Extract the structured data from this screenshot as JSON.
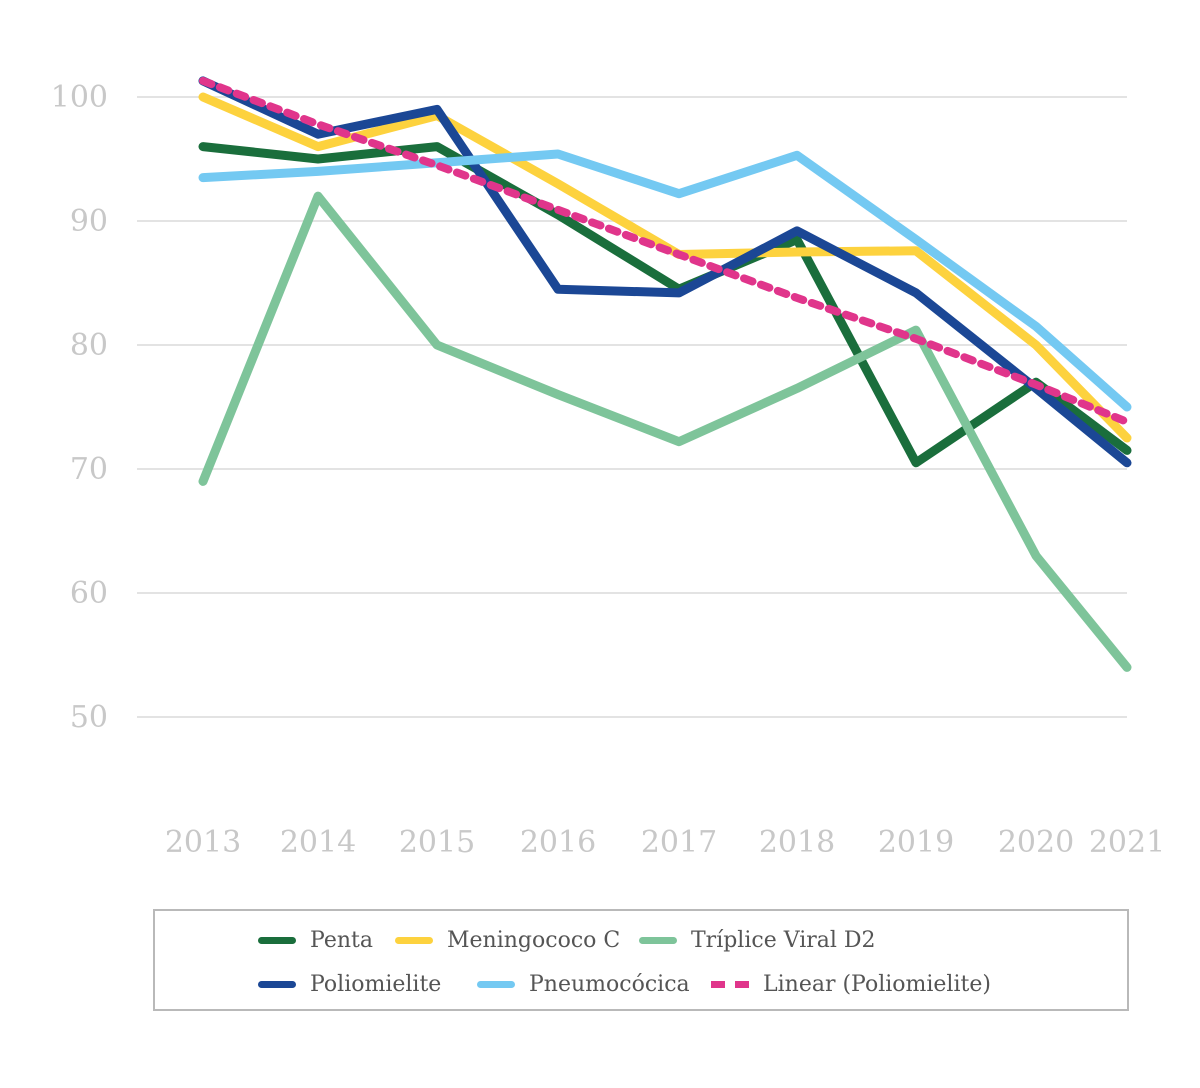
{
  "chart_data": {
    "type": "line",
    "title": "",
    "xlabel": "",
    "ylabel": "",
    "categories": [
      "2013",
      "2014",
      "2015",
      "2016",
      "2017",
      "2018",
      "2019",
      "2020",
      "2021"
    ],
    "ylim": [
      50,
      100
    ],
    "yticks": [
      100,
      90,
      80,
      70,
      60,
      50
    ],
    "grid": true,
    "legend_position": "bottom",
    "series": [
      {
        "name": "Penta",
        "color": "#1a6e3c",
        "style": "solid",
        "values": [
          96.0,
          95.0,
          96.0,
          90.5,
          84.5,
          88.5,
          70.5,
          77.0,
          71.5
        ]
      },
      {
        "name": "Meningococo C",
        "color": "#fdd23e",
        "style": "solid",
        "values": [
          100.0,
          96.0,
          98.5,
          93.0,
          87.3,
          87.5,
          87.6,
          80.0,
          72.5
        ]
      },
      {
        "name": "Tríplice Viral D2",
        "color": "#7ec49a",
        "style": "solid",
        "values": [
          69.0,
          92.0,
          80.0,
          76.0,
          72.2,
          76.5,
          81.2,
          63.0,
          54.0
        ]
      },
      {
        "name": "Poliomielite",
        "color": "#1b4795",
        "style": "solid",
        "values": [
          101.3,
          97.0,
          99.0,
          84.5,
          84.2,
          89.2,
          84.2,
          76.5,
          70.5
        ]
      },
      {
        "name": "Pneumocócica",
        "color": "#74c9f2",
        "style": "solid",
        "values": [
          93.5,
          94.0,
          94.7,
          95.4,
          92.2,
          95.3,
          88.5,
          81.5,
          75.0
        ]
      },
      {
        "name": "Linear (Poliomielite)",
        "color": "#e0358b",
        "style": "dashed",
        "values": [
          101.3,
          97.8,
          94.5,
          90.9,
          87.3,
          83.8,
          80.5,
          76.8,
          73.8
        ]
      }
    ]
  },
  "legend": {
    "items": [
      {
        "label": "Penta",
        "color": "#1a6e3c",
        "style": "solid"
      },
      {
        "label": "Meningococo C",
        "color": "#fdd23e",
        "style": "solid"
      },
      {
        "label": "Tríplice Viral D2",
        "color": "#7ec49a",
        "style": "solid"
      },
      {
        "label": "Poliomielite",
        "color": "#1b4795",
        "style": "solid"
      },
      {
        "label": "Pneumocócica",
        "color": "#74c9f2",
        "style": "solid"
      },
      {
        "label": "Linear (Poliomielite)",
        "color": "#e0358b",
        "style": "dashed"
      }
    ]
  }
}
